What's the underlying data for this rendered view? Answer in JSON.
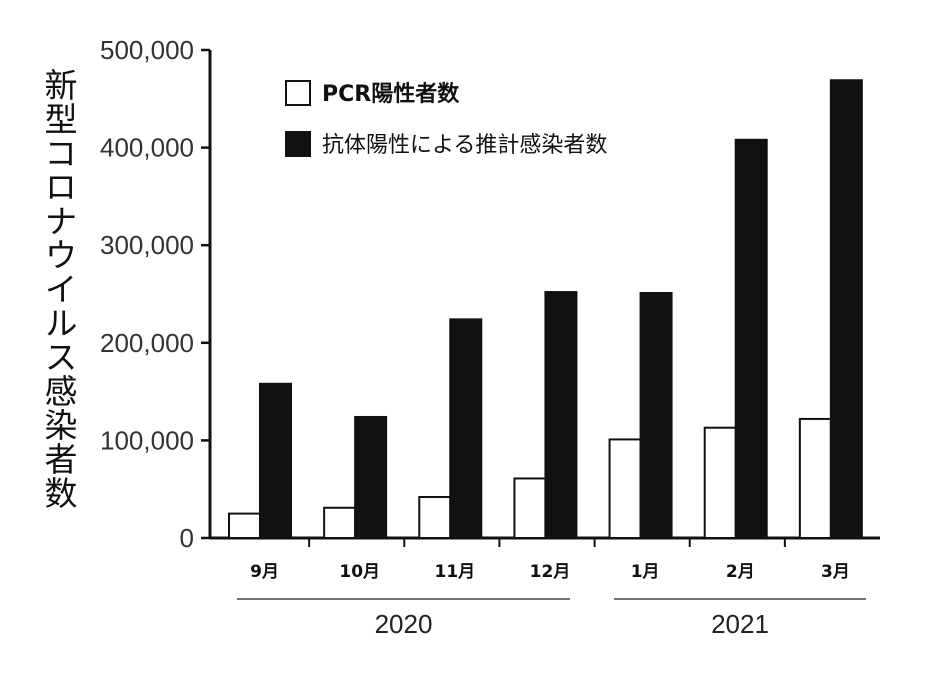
{
  "chart_data": {
    "type": "bar",
    "ylabel": "新型コロナウイルス感染者数",
    "ylim": [
      0,
      500000
    ],
    "yticks": [
      "0",
      "100,000",
      "200,000",
      "300,000",
      "400,000",
      "500,000"
    ],
    "categories": [
      "9月",
      "10月",
      "11月",
      "12月",
      "1月",
      "2月",
      "3月"
    ],
    "groups": [
      {
        "label": "2020",
        "categories": [
          "9月",
          "10月",
          "11月",
          "12月"
        ]
      },
      {
        "label": "2021",
        "categories": [
          "1月",
          "2月",
          "3月"
        ]
      }
    ],
    "series": [
      {
        "name": "PCR陽性者数",
        "color": "#ffffff",
        "values": [
          25000,
          31000,
          42000,
          61000,
          101000,
          113000,
          122000
        ]
      },
      {
        "name": "抗体陽性による推計感染者数",
        "color": "#111111",
        "values": [
          158000,
          124000,
          224000,
          252000,
          251000,
          408000,
          469000
        ]
      }
    ],
    "legend_position": "top-left",
    "grid": false
  }
}
